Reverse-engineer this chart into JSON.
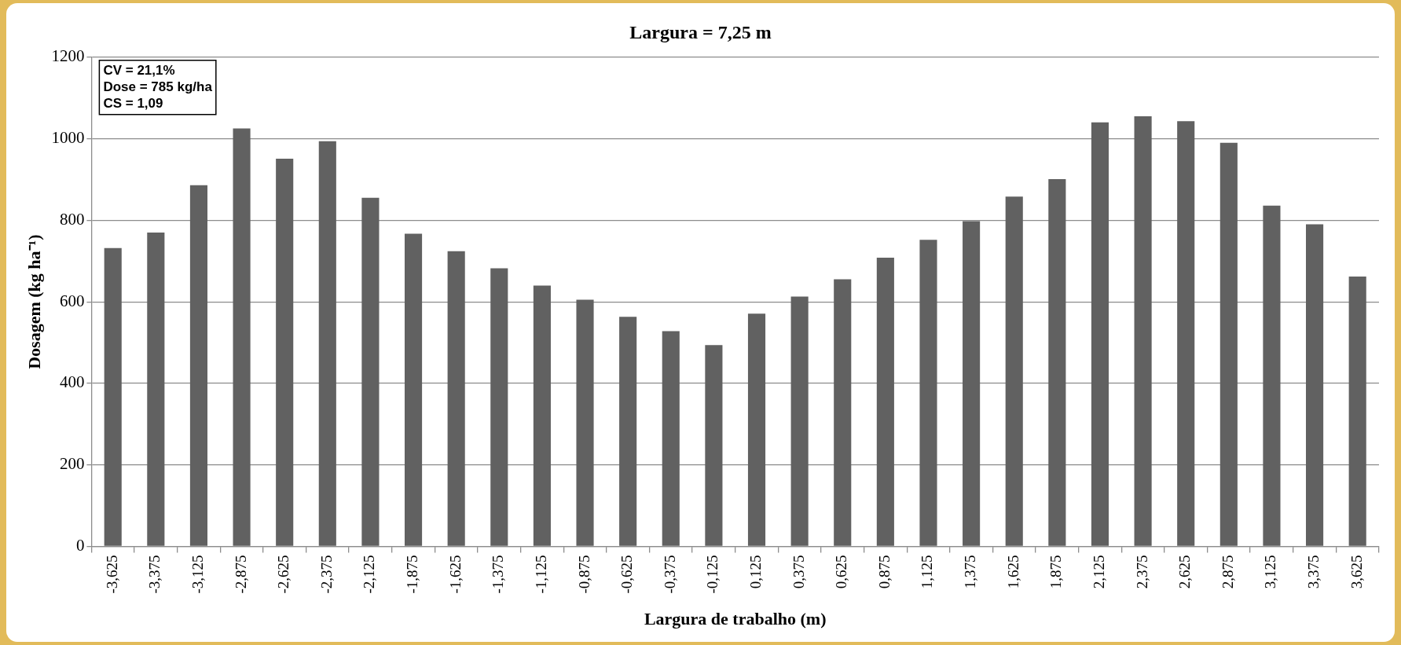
{
  "chart_data": {
    "type": "bar",
    "title": "Largura = 7,25 m",
    "xlabel": "Largura de trabalho (m)",
    "ylabel": "Dosagem (kg ha⁻¹)",
    "categories": [
      "-3,625",
      "-3,375",
      "-3,125",
      "-2,875",
      "-2,625",
      "-2,375",
      "-2,125",
      "-1,875",
      "-1,625",
      "-1,375",
      "-1,125",
      "-0,875",
      "-0,625",
      "-0,375",
      "-0,125",
      "0,125",
      "0,375",
      "0,625",
      "0,875",
      "1,125",
      "1,375",
      "1,625",
      "1,875",
      "2,125",
      "2,375",
      "2,625",
      "2,875",
      "3,125",
      "3,375",
      "3,625"
    ],
    "values": [
      732,
      770,
      886,
      1025,
      951,
      994,
      855,
      767,
      724,
      682,
      640,
      605,
      563,
      528,
      494,
      571,
      613,
      655,
      708,
      752,
      798,
      858,
      901,
      1040,
      1055,
      1043,
      990,
      836,
      790,
      662
    ],
    "color": "#616161",
    "ylim": [
      0,
      1200
    ],
    "yticks": [
      0,
      200,
      400,
      600,
      800,
      1000,
      1200
    ],
    "grid": "y",
    "annotations": [
      "CV = 21,1%",
      "Dose = 785 kg/ha",
      "CS = 1,09"
    ]
  }
}
